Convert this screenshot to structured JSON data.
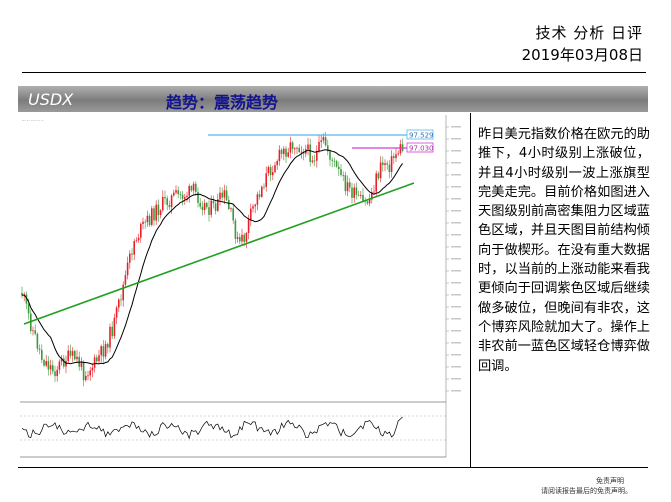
{
  "header": {
    "title": "技术 分析 日评",
    "date": "2019年03月08日"
  },
  "band": {
    "ticker": "USDX",
    "trend": "趋势：震荡趋势"
  },
  "chart_data": {
    "type": "line",
    "price_tags": [
      "97.529",
      "97.030"
    ],
    "price_levels": [
      97.529,
      97.03
    ],
    "colors": {
      "up": "#e8202a",
      "down": "#3c9a3c",
      "resistance": "#58b8e8",
      "target": "#d040d0",
      "trendline": "#20a020",
      "ma": "#000000"
    }
  },
  "comment": {
    "text": "昨日美元指数价格在欧元的助推下，4小时级别上涨破位，并且4小时级别一波上涨旗型完美走完。目前价格如图进入天图级别前高密集阻力区域蓝色区域，并且天图目前结构倾向于做楔形。在没有重大数据时，以当前的上涨动能来看我更倾向于回调紫色区域后继续做多破位，但晚间有非农，这个博弈风险就加大了。操作上非农前一蓝色区域轻仓博弈做回调。"
  },
  "footer": {
    "disclaimer_title": "免责声明",
    "disclaimer_text": "请阅读报告最后的免责声明。"
  }
}
